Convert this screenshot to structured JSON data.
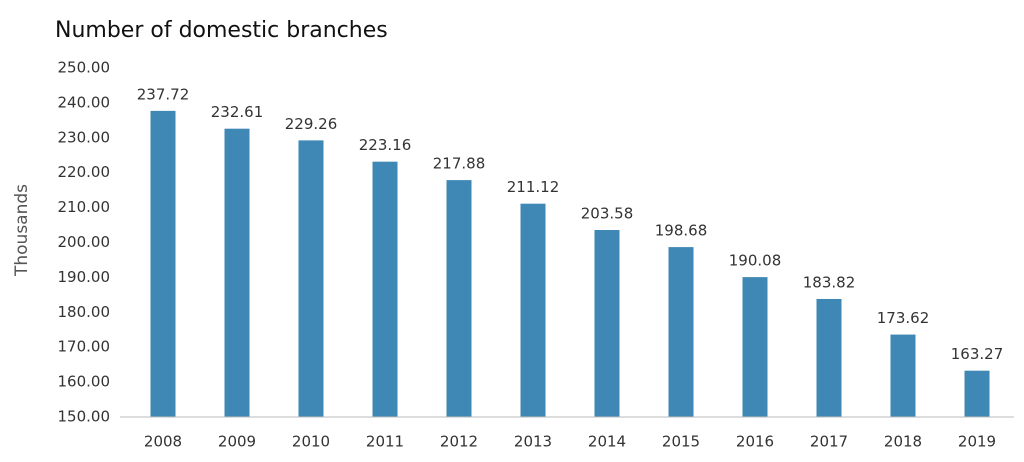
{
  "chart_data": {
    "type": "bar",
    "title": "Number of domestic branches",
    "y_label": "Thousands",
    "categories": [
      "2008",
      "2009",
      "2010",
      "2011",
      "2012",
      "2013",
      "2014",
      "2015",
      "2016",
      "2017",
      "2018",
      "2019"
    ],
    "values": [
      237.72,
      232.61,
      229.26,
      223.16,
      217.88,
      211.12,
      203.58,
      198.68,
      190.08,
      183.82,
      173.62,
      163.27
    ],
    "color": "#3f88b5",
    "ylim": [
      150,
      250
    ],
    "yticks": [
      {
        "value": 150,
        "label": "150.00"
      },
      {
        "value": 160,
        "label": "160.00"
      },
      {
        "value": 170,
        "label": "170.00"
      },
      {
        "value": 180,
        "label": "180.00"
      },
      {
        "value": 190,
        "label": "190.00"
      },
      {
        "value": 200,
        "label": "200.00"
      },
      {
        "value": 210,
        "label": "210.00"
      },
      {
        "value": 220,
        "label": "220.00"
      },
      {
        "value": 230,
        "label": "230.00"
      },
      {
        "value": 240,
        "label": "240.00"
      },
      {
        "value": 250,
        "label": "250.00"
      }
    ],
    "grid": false
  }
}
